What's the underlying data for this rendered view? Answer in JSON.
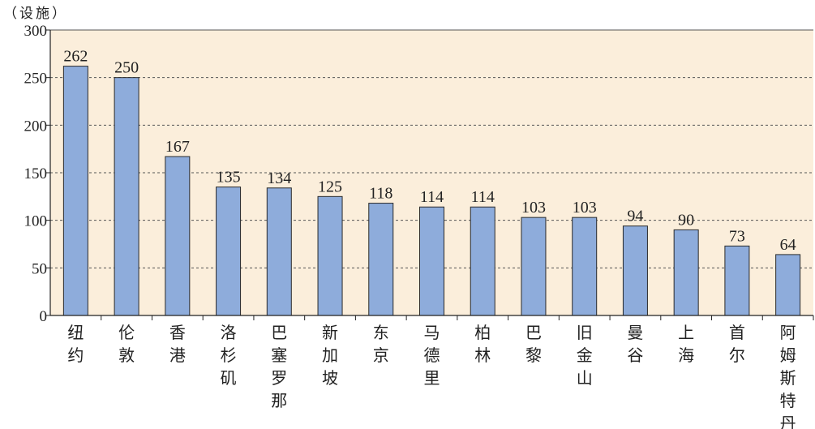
{
  "chart_data": {
    "type": "bar",
    "unit_label": "（设施）",
    "categories": [
      "纽约",
      "伦敦",
      "香港",
      "洛杉矶",
      "巴塞罗那",
      "新加坡",
      "东京",
      "马德里",
      "柏林",
      "巴黎",
      "旧金山",
      "曼谷",
      "上海",
      "首尔",
      "阿姆斯特丹"
    ],
    "values": [
      262,
      250,
      167,
      135,
      134,
      125,
      118,
      114,
      114,
      103,
      103,
      94,
      90,
      73,
      64
    ],
    "ylim": [
      0,
      300
    ],
    "yticks": [
      0,
      50,
      100,
      150,
      200,
      250,
      300
    ],
    "grid": true,
    "colors": {
      "bar_fill": "#8eacdb",
      "bar_stroke": "#2a2a2a",
      "plot_background": "#fbeedb",
      "grid": "#555555"
    }
  }
}
